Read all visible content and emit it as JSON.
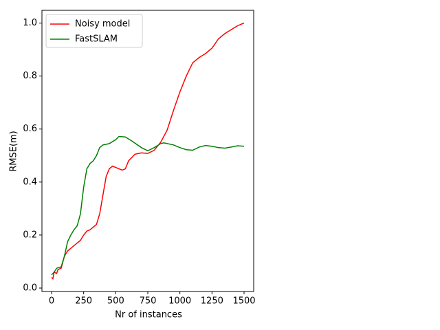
{
  "chart_data": {
    "type": "line",
    "xlabel": "Nr of instances",
    "ylabel": "RMSE(m)",
    "xlim": [
      -75,
      1575
    ],
    "ylim": [
      -0.013,
      1.048
    ],
    "xticks": [
      0,
      250,
      500,
      750,
      1000,
      1250,
      1500
    ],
    "yticks": [
      {
        "value": 0,
        "label": "0.0"
      },
      {
        "value": 0.2,
        "label": "0.2"
      },
      {
        "value": 0.4,
        "label": "0.4"
      },
      {
        "value": 0.6,
        "label": "0.6"
      },
      {
        "value": 0.8,
        "label": "0.8"
      },
      {
        "value": 1.0,
        "label": "1.0"
      }
    ],
    "legend": "upper left",
    "series": [
      {
        "name": "Noisy model",
        "color": "#ff0000",
        "x": [
          0,
          10,
          20,
          40,
          50,
          75,
          100,
          125,
          150,
          175,
          200,
          225,
          250,
          275,
          300,
          350,
          375,
          400,
          425,
          450,
          475,
          500,
          550,
          575,
          600,
          650,
          700,
          750,
          800,
          850,
          900,
          950,
          1000,
          1050,
          1100,
          1150,
          1200,
          1250,
          1300,
          1350,
          1400,
          1450,
          1500
        ],
        "values": [
          0.04,
          0.035,
          0.06,
          0.055,
          0.07,
          0.075,
          0.12,
          0.14,
          0.15,
          0.16,
          0.17,
          0.18,
          0.2,
          0.215,
          0.22,
          0.24,
          0.28,
          0.35,
          0.42,
          0.45,
          0.46,
          0.455,
          0.445,
          0.45,
          0.48,
          0.505,
          0.51,
          0.508,
          0.52,
          0.55,
          0.595,
          0.67,
          0.74,
          0.8,
          0.85,
          0.87,
          0.885,
          0.905,
          0.94,
          0.96,
          0.975,
          0.99,
          1.0
        ]
      },
      {
        "name": "FastSLAM",
        "color": "#008000",
        "x": [
          0,
          20,
          40,
          75,
          100,
          125,
          150,
          175,
          200,
          225,
          250,
          275,
          300,
          325,
          350,
          375,
          400,
          450,
          500,
          525,
          575,
          625,
          700,
          750,
          800,
          850,
          875,
          950,
          1000,
          1050,
          1100,
          1150,
          1200,
          1250,
          1300,
          1350,
          1400,
          1450,
          1500
        ],
        "values": [
          0.05,
          0.06,
          0.075,
          0.08,
          0.12,
          0.175,
          0.2,
          0.22,
          0.235,
          0.28,
          0.38,
          0.45,
          0.47,
          0.48,
          0.5,
          0.53,
          0.54,
          0.545,
          0.56,
          0.572,
          0.57,
          0.555,
          0.53,
          0.518,
          0.53,
          0.545,
          0.548,
          0.54,
          0.53,
          0.522,
          0.52,
          0.532,
          0.538,
          0.535,
          0.53,
          0.528,
          0.532,
          0.537,
          0.535
        ]
      }
    ]
  }
}
